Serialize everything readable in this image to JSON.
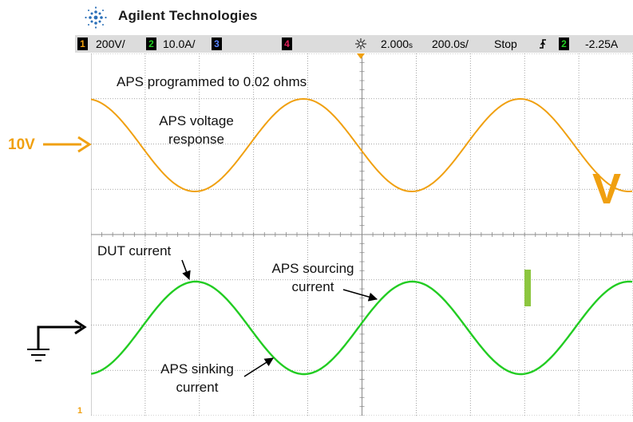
{
  "header": {
    "brand": "Agilent Technologies",
    "logo_icon": "agilent-spark-icon"
  },
  "status_bar": {
    "ch1_num": "1",
    "ch1_scale": "200",
    "ch1_unit": "V/",
    "ch2_num": "2",
    "ch2_scale": "10.0A/",
    "ch3_num": "3",
    "ch4_num": "4",
    "time_pos": "2.000",
    "time_pos_unit": "s",
    "time_scale": "200.0",
    "time_scale_unit": "s/",
    "run_state": "Stop",
    "trigger_icon": "trigger-edge-icon",
    "trigger_ch": "2",
    "trigger_level": "-2.25A"
  },
  "colors": {
    "ch1": "#f0a010",
    "ch2": "#22cc22",
    "ch3": "#3a5fcd",
    "ch4": "#e0205a",
    "grid": "#8a8a8a"
  },
  "annotations": {
    "title": "APS programmed  to 0.02 ohms",
    "voltage_line1": "APS voltage",
    "voltage_line2": "response",
    "dut_current": "DUT current",
    "sourcing_line1": "APS sourcing",
    "sourcing_line2": "current",
    "sinking_line1": "APS sinking",
    "sinking_line2": "current",
    "ten_v": "10V",
    "v_marker": "V"
  },
  "markers": {
    "ch1_ground": "1"
  }
}
